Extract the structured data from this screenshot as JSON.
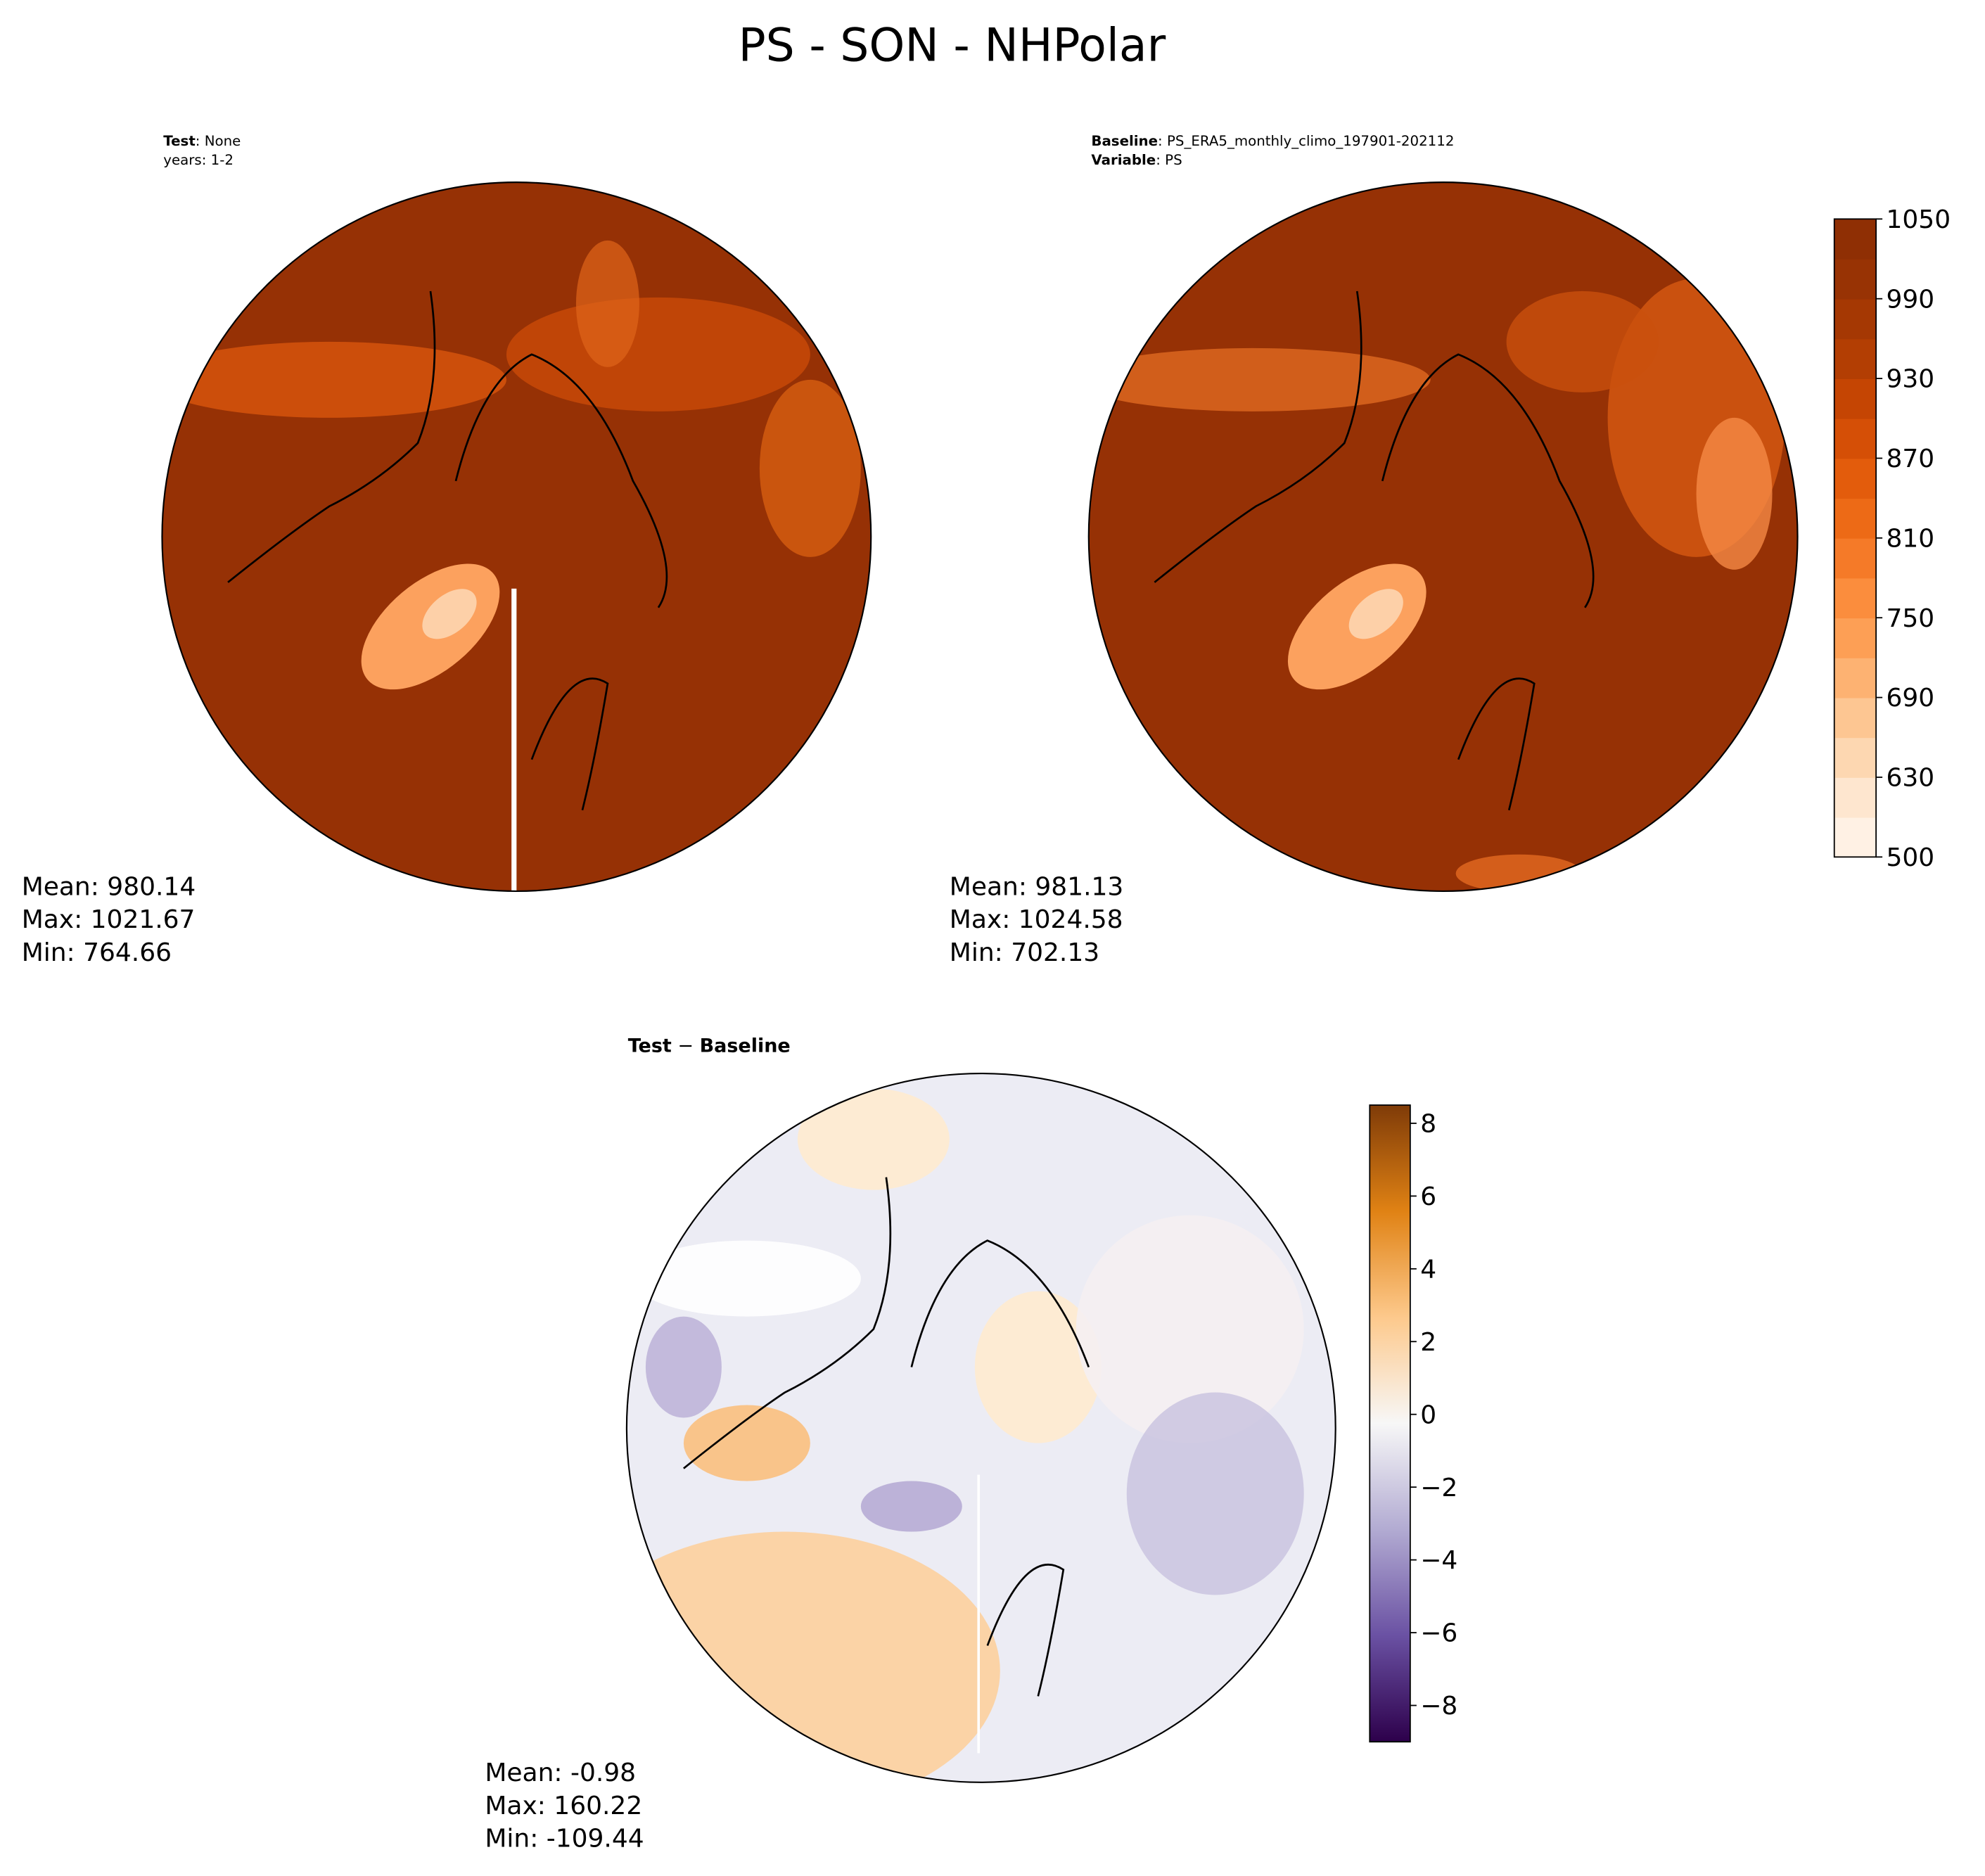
{
  "title": "PS - SON - NHPolar",
  "chart_data": [
    {
      "type": "map",
      "header": [
        {
          "bold": "Test",
          "text": ": None"
        },
        {
          "text": "years: 1-2"
        }
      ],
      "stats": [
        "Mean: 980.14",
        "Max: 1021.67",
        "Min: 764.66"
      ]
    },
    {
      "type": "map",
      "header": [
        {
          "bold": "Baseline",
          "text": ": PS_ERA5_monthly_climo_197901-202112"
        },
        {
          "bold": "Variable",
          "text": ": PS"
        }
      ],
      "stats": [
        "Mean: 981.13",
        "Max: 1024.58",
        "Min: 702.13"
      ],
      "colorbar": {
        "levels": [
          500,
          600,
          630,
          660,
          690,
          720,
          750,
          780,
          810,
          840,
          870,
          900,
          930,
          960,
          990,
          1020,
          1050
        ],
        "ticks": [
          500,
          630,
          690,
          750,
          810,
          870,
          930,
          990,
          1050
        ],
        "colors": [
          "#fff1e4",
          "#fee6cf",
          "#fdd7b1",
          "#fdc692",
          "#fdb272",
          "#fd9f55",
          "#fb8d3d",
          "#f57a28",
          "#ed6a16",
          "#e35c0c",
          "#d54f06",
          "#c54503",
          "#b33e03",
          "#a53803",
          "#983304",
          "#8f2f04"
        ]
      }
    },
    {
      "type": "map",
      "title": [
        {
          "bold": "Test"
        },
        {
          "text": " − "
        },
        {
          "bold": "Baseline"
        }
      ],
      "stats": [
        "Mean: -0.98",
        "Max: 160.22",
        "Min: -109.44"
      ],
      "colorbar": {
        "ylim": [
          -9,
          8.5
        ],
        "yticks": [
          {
            "value": -8,
            "label": "−8"
          },
          {
            "value": -6,
            "label": "−6"
          },
          {
            "value": -4,
            "label": "−4"
          },
          {
            "value": -2,
            "label": "−2"
          },
          0,
          2,
          4,
          6,
          8
        ],
        "colors": [
          "#2d004b",
          "#6a51a3",
          "#b2abd2",
          "#f7f7f7",
          "#fdc98c",
          "#e08214",
          "#7f3b08"
        ]
      }
    }
  ]
}
